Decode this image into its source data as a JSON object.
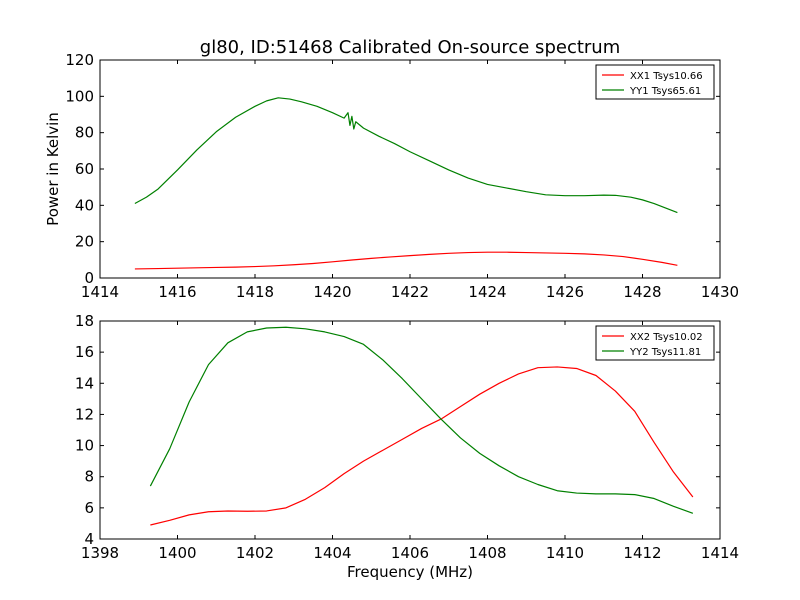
{
  "figure": {
    "title": "gl80, ID:51468 Calibrated On-source spectrum"
  },
  "chart_data": [
    {
      "type": "line",
      "title": "gl80, ID:51468 Calibrated On-source spectrum",
      "xlabel": "",
      "ylabel": "Power in Kelvin",
      "xlim": [
        1414,
        1430
      ],
      "ylim": [
        0,
        120
      ],
      "xticks": [
        "1414",
        "1416",
        "1418",
        "1420",
        "1422",
        "1424",
        "1426",
        "1428",
        "1430"
      ],
      "yticks": [
        "0",
        "20",
        "40",
        "60",
        "80",
        "100",
        "120"
      ],
      "grid": false,
      "legend_position": "top-right",
      "series": [
        {
          "name": "XX1 Tsys10.66",
          "color": "#ff0000",
          "x": [
            1414.9,
            1415.5,
            1416,
            1416.5,
            1417,
            1417.5,
            1418,
            1418.5,
            1419,
            1419.5,
            1420,
            1420.5,
            1421,
            1421.5,
            1422,
            1422.5,
            1423,
            1423.5,
            1424,
            1424.5,
            1425,
            1425.5,
            1426,
            1426.5,
            1427,
            1427.5,
            1428,
            1428.5,
            1428.9
          ],
          "y": [
            5.0,
            5.2,
            5.4,
            5.6,
            5.8,
            6.0,
            6.3,
            6.7,
            7.3,
            8.0,
            8.9,
            9.9,
            10.8,
            11.6,
            12.3,
            13.0,
            13.6,
            14.0,
            14.2,
            14.2,
            14.0,
            13.8,
            13.6,
            13.3,
            12.7,
            11.8,
            10.3,
            8.6,
            7.0
          ]
        },
        {
          "name": "YY1 Tsys65.61",
          "color": "#008000",
          "x": [
            1414.9,
            1415.2,
            1415.5,
            1416,
            1416.5,
            1417,
            1417.5,
            1418,
            1418.3,
            1418.6,
            1418.9,
            1419.2,
            1419.6,
            1420,
            1420.3,
            1420.4,
            1420.45,
            1420.5,
            1420.55,
            1420.6,
            1420.8,
            1421.2,
            1421.6,
            1422,
            1422.5,
            1423,
            1423.5,
            1424,
            1424.5,
            1425,
            1425.5,
            1426,
            1426.5,
            1427,
            1427.3,
            1427.7,
            1428,
            1428.3,
            1428.6,
            1428.9
          ],
          "y": [
            41,
            44.5,
            49,
            59.5,
            70.5,
            80.5,
            88.5,
            94.5,
            97.5,
            99.2,
            98.5,
            97,
            94.5,
            91,
            88,
            91,
            84,
            89,
            82,
            86,
            82.5,
            78,
            74,
            69.5,
            64.5,
            59.5,
            55,
            51.5,
            49.5,
            47.5,
            45.8,
            45.3,
            45.3,
            45.6,
            45.5,
            44.5,
            43,
            41,
            38.5,
            36
          ]
        }
      ]
    },
    {
      "type": "line",
      "title": "",
      "xlabel": "Frequency (MHz)",
      "ylabel": "",
      "xlim": [
        1398,
        1414
      ],
      "ylim": [
        4,
        18
      ],
      "xticks": [
        "1398",
        "1400",
        "1402",
        "1404",
        "1406",
        "1408",
        "1410",
        "1412",
        "1414"
      ],
      "yticks": [
        "4",
        "6",
        "8",
        "10",
        "12",
        "14",
        "16",
        "18"
      ],
      "grid": false,
      "legend_position": "top-right",
      "series": [
        {
          "name": "XX2 Tsys10.02",
          "color": "#ff0000",
          "x": [
            1399.3,
            1399.8,
            1400.3,
            1400.8,
            1401.3,
            1401.8,
            1402.3,
            1402.8,
            1403.3,
            1403.8,
            1404.3,
            1404.8,
            1405.3,
            1405.8,
            1406.3,
            1406.8,
            1407.3,
            1407.8,
            1408.3,
            1408.8,
            1409.3,
            1409.8,
            1410.3,
            1410.8,
            1411.3,
            1411.8,
            1412.3,
            1412.8,
            1413.3
          ],
          "y": [
            4.9,
            5.2,
            5.55,
            5.75,
            5.8,
            5.78,
            5.8,
            6.0,
            6.55,
            7.3,
            8.2,
            9.0,
            9.7,
            10.4,
            11.1,
            11.7,
            12.5,
            13.3,
            14.0,
            14.6,
            15.0,
            15.05,
            14.95,
            14.5,
            13.5,
            12.2,
            10.2,
            8.3,
            6.7
          ]
        },
        {
          "name": "YY2 Tsys11.81",
          "color": "#008000",
          "x": [
            1399.3,
            1399.8,
            1400.3,
            1400.8,
            1401.3,
            1401.8,
            1402.3,
            1402.8,
            1403.3,
            1403.8,
            1404.3,
            1404.8,
            1405.3,
            1405.8,
            1406.3,
            1406.8,
            1407.3,
            1407.8,
            1408.3,
            1408.8,
            1409.3,
            1409.8,
            1410.3,
            1410.8,
            1411.3,
            1411.8,
            1412.3,
            1412.8,
            1413.3
          ],
          "y": [
            7.4,
            9.8,
            12.8,
            15.2,
            16.6,
            17.3,
            17.55,
            17.6,
            17.5,
            17.3,
            17.0,
            16.5,
            15.5,
            14.3,
            13.0,
            11.7,
            10.5,
            9.5,
            8.7,
            8.0,
            7.5,
            7.1,
            6.95,
            6.9,
            6.9,
            6.85,
            6.6,
            6.1,
            5.65
          ]
        }
      ]
    }
  ]
}
